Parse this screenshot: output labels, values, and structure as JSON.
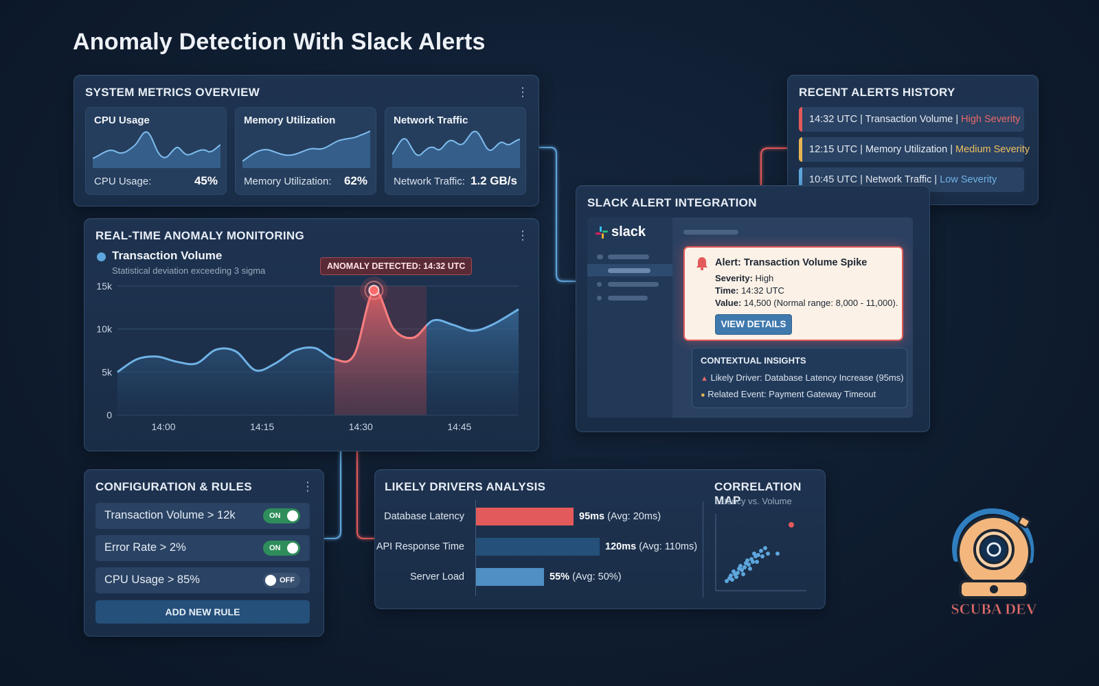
{
  "page": {
    "title": "Anomaly Detection With Slack Alerts"
  },
  "system_metrics": {
    "title": "SYSTEM METRICS OVERVIEW",
    "cards": [
      {
        "title": "CPU Usage",
        "label": "CPU Usage:",
        "value": "45%"
      },
      {
        "title": "Memory Utilization",
        "label": "Memory Utilization:",
        "value": "62%"
      },
      {
        "title": "Network Traffic",
        "label": "Network Traffic:",
        "value": "1.2 GB/s"
      }
    ]
  },
  "monitoring": {
    "title": "REAL-TIME ANOMALY MONITORING",
    "series_name": "Transaction Volume",
    "subtitle": "Statistical deviation exceeding 3 sigma",
    "anomaly_tag": "ANOMALY DETECTED: 14:32 UTC",
    "colors": {
      "series": "#5ea6dd",
      "anomaly": "#e35a5a"
    }
  },
  "chart_data": {
    "type": "area",
    "x_ticks": [
      "14:00",
      "14:15",
      "14:30",
      "14:45"
    ],
    "y_ticks": [
      "0",
      "5k",
      "10k",
      "15k"
    ],
    "ylim": [
      0,
      15000
    ],
    "xlim": [
      "13:53",
      "14:54"
    ],
    "grid": true,
    "series": [
      {
        "name": "Transaction Volume",
        "x": [
          "13:53",
          "13:56",
          "13:59",
          "14:02",
          "14:05",
          "14:08",
          "14:11",
          "14:14",
          "14:17",
          "14:20",
          "14:23",
          "14:26",
          "14:29",
          "14:32",
          "14:35",
          "14:38",
          "14:41",
          "14:44",
          "14:47",
          "14:50",
          "14:54"
        ],
        "values": [
          5000,
          6500,
          6800,
          6200,
          6000,
          7600,
          7400,
          5200,
          6000,
          7500,
          7800,
          6500,
          7000,
          14500,
          10000,
          9000,
          11000,
          10500,
          9800,
          10500,
          12300
        ]
      }
    ],
    "anomaly_window": [
      "14:26",
      "14:40"
    ],
    "anomaly_point": {
      "x": "14:32",
      "y": 14500
    }
  },
  "recent_alerts": {
    "title": "RECENT ALERTS HISTORY",
    "items": [
      {
        "prefix": "14:32 UTC | Transaction Volume | ",
        "severity": "High Severity",
        "color": "#e35a5a"
      },
      {
        "prefix": "12:15 UTC | Memory Utilization | ",
        "severity": "Medium Severity",
        "color": "#e8b453"
      },
      {
        "prefix": "10:45 UTC | Network Traffic | ",
        "severity": "Low Severity",
        "color": "#5ea6dd"
      }
    ]
  },
  "slack": {
    "title": "SLACK ALERT INTEGRATION",
    "logo_text": "slack",
    "alert": {
      "title": "Alert: Transaction Volume Spike",
      "severity_label": "Severity:",
      "severity_value": "High",
      "time_label": "Time:",
      "time_value": "14:32 UTC",
      "value_label": "Value:",
      "value_value": "14,500 (Normal range: 8,000 - 11,000).",
      "button": "VIEW DETAILS"
    },
    "insights": {
      "title": "CONTEXTUAL INSIGHTS",
      "lines": [
        "Likely Driver: Database Latency Increase (95ms)",
        "Related Event: Payment Gateway Timeout"
      ]
    }
  },
  "config": {
    "title": "CONFIGURATION & RULES",
    "rules": [
      {
        "label": "Transaction Volume > 12k",
        "state": "ON"
      },
      {
        "label": "Error Rate > 2%",
        "state": "ON"
      },
      {
        "label": "CPU Usage > 85%",
        "state": "OFF"
      }
    ],
    "add_button": "ADD NEW RULE"
  },
  "drivers": {
    "title": "LIKELY DRIVERS ANALYSIS",
    "items": [
      {
        "label": "Database Latency",
        "value": "95ms",
        "avg": "(Avg: 20ms)",
        "fill": 0.79,
        "color": "#e35a5a"
      },
      {
        "label": "API Response Time",
        "value": "120ms",
        "avg": "(Avg: 110ms)",
        "fill": 1.0,
        "color": "#245079"
      },
      {
        "label": "Server Load",
        "value": "55%",
        "avg": "(Avg: 50%)",
        "fill": 0.55,
        "color": "#4f8fc4"
      }
    ]
  },
  "correlation": {
    "title": "CORRELATION MAP",
    "subtitle": "Latency vs. Volume"
  },
  "brand": {
    "logo_text": "SCUBA DEV"
  }
}
